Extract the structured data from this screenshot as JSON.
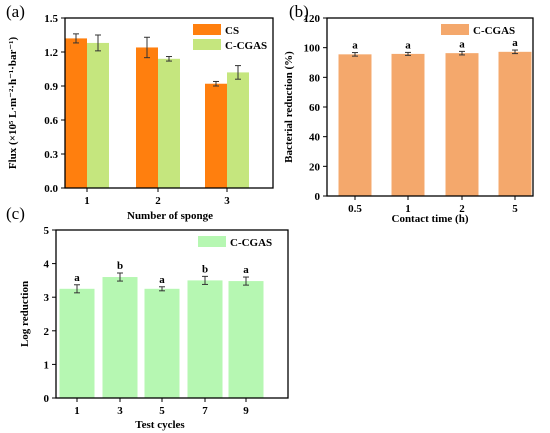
{
  "chart_data": [
    {
      "panel": "(a)",
      "type": "bar",
      "categories": [
        "1",
        "2",
        "3"
      ],
      "series": [
        {
          "name": "CS",
          "color": "#FF7F0E",
          "values": [
            1.32,
            1.24,
            0.92
          ],
          "errors": [
            0.04,
            0.09,
            0.02
          ]
        },
        {
          "name": "C-CGAS",
          "color": "#C5E67E",
          "values": [
            1.28,
            1.14,
            1.02
          ],
          "errors": [
            0.07,
            0.02,
            0.06
          ]
        }
      ],
      "title": "",
      "xlabel": "Number of sponge",
      "ylabel": "Flux (×10⁵ L·m⁻²·h⁻¹·bar⁻¹)",
      "ylim": [
        0.0,
        1.5
      ],
      "yticks": [
        "0.0",
        "0.3",
        "0.6",
        "0.9",
        "1.2",
        "1.5"
      ],
      "legend": "top-right"
    },
    {
      "panel": "(b)",
      "type": "bar",
      "categories": [
        "0.5",
        "1",
        "2",
        "5"
      ],
      "series": [
        {
          "name": "C-CGAS",
          "color": "#F4A86C",
          "values": [
            95.5,
            95.8,
            96.3,
            97.2
          ],
          "errors": [
            1.2,
            1.0,
            1.2,
            1.2
          ]
        }
      ],
      "significance": [
        "a",
        "a",
        "a",
        "a"
      ],
      "title": "",
      "xlabel": "Contact time (h)",
      "ylabel": "Bacterial reduction (%)",
      "ylim": [
        0,
        120
      ],
      "yticks": [
        "0",
        "20",
        "40",
        "60",
        "80",
        "100",
        "120"
      ],
      "legend": "top-right"
    },
    {
      "panel": "(c)",
      "type": "bar",
      "categories": [
        "1",
        "3",
        "5",
        "7",
        "9"
      ],
      "series": [
        {
          "name": "C-CGAS",
          "color": "#B6F7B2",
          "values": [
            3.25,
            3.6,
            3.25,
            3.5,
            3.48
          ],
          "errors": [
            0.12,
            0.12,
            0.06,
            0.12,
            0.12
          ]
        }
      ],
      "significance": [
        "a",
        "b",
        "a",
        "b",
        "a"
      ],
      "title": "",
      "xlabel": "Test cycles",
      "ylabel": "Log reduction",
      "ylim": [
        0,
        5
      ],
      "yticks": [
        "0",
        "1",
        "2",
        "3",
        "4",
        "5"
      ],
      "legend": "top-right"
    }
  ]
}
